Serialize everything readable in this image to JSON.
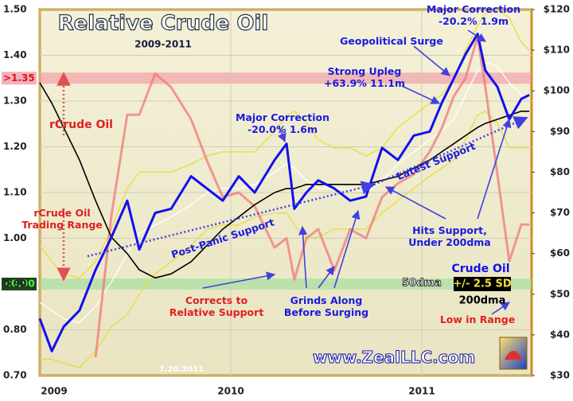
{
  "chart_data": {
    "type": "line",
    "title": "Relative Crude Oil",
    "subtitle": "2009-2011",
    "x": [
      2009.0,
      2009.063,
      2009.125,
      2009.208,
      2009.292,
      2009.375,
      2009.458,
      2009.521,
      2009.604,
      2009.688,
      2009.792,
      2009.875,
      2009.958,
      2010.042,
      2010.125,
      2010.229,
      2010.292,
      2010.333,
      2010.396,
      2010.458,
      2010.542,
      2010.625,
      2010.708,
      2010.792,
      2010.875,
      2010.958,
      2011.042,
      2011.104,
      2011.167,
      2011.229,
      2011.292,
      2011.333,
      2011.396,
      2011.458,
      2011.521,
      2011.563
    ],
    "xlim": [
      2009,
      2011.575
    ],
    "xticks": [
      2009,
      2010,
      2011
    ],
    "ylim": [
      0.7,
      1.5
    ],
    "yticks": [
      {
        "value": 0.7,
        "label": "0.70"
      },
      {
        "value": 0.8,
        "label": "0.80"
      },
      {
        "value": 0.9,
        "label": "0.90"
      },
      {
        "value": 1.0,
        "label": "1.00"
      },
      {
        "value": 1.1,
        "label": "1.10"
      },
      {
        "value": 1.2,
        "label": "1.20"
      },
      {
        "value": 1.3,
        "label": "1.30"
      },
      {
        "value": 1.4,
        "label": "1.40"
      },
      {
        "value": 1.5,
        "label": "1.50"
      }
    ],
    "y2lim": [
      30,
      120
    ],
    "y2ticks": [
      {
        "value": 30,
        "label": "$30"
      },
      {
        "value": 40,
        "label": "$40"
      },
      {
        "value": 50,
        "label": "$50"
      },
      {
        "value": 60,
        "label": "$60"
      },
      {
        "value": 70,
        "label": "$70"
      },
      {
        "value": 80,
        "label": "$80"
      },
      {
        "value": 90,
        "label": "$90"
      },
      {
        "value": 100,
        "label": "$100"
      },
      {
        "value": 110,
        "label": "$110"
      },
      {
        "value": 120,
        "label": "$120"
      }
    ],
    "grid": true,
    "bands": [
      {
        "value": 1.35,
        "label": ">1.35",
        "color": "#f08a9a"
      },
      {
        "value": 0.9,
        "label": "<0.90",
        "color": "#8fe08f"
      }
    ],
    "series": [
      {
        "name": "Crude Oil",
        "color": "#1010f0",
        "axis": "y2",
        "values": [
          44,
          36,
          42,
          46,
          56,
          64,
          73,
          61,
          70,
          71,
          79,
          76,
          73,
          79,
          75,
          83,
          87,
          71,
          75,
          78,
          76,
          73,
          74,
          86,
          83,
          89,
          90,
          97,
          103,
          109,
          114,
          105,
          101,
          93,
          98,
          99
        ]
      },
      {
        "name": "50dma",
        "color": "#ffffff",
        "axis": "y2",
        "values": [
          48,
          46,
          44,
          43,
          47,
          53,
          60,
          65,
          67,
          69,
          72,
          75,
          76,
          76,
          77,
          80,
          82,
          81,
          78,
          76,
          76,
          76,
          75,
          78,
          82,
          85,
          88,
          90,
          93,
          99,
          105,
          107,
          106,
          102,
          99,
          98
        ]
      },
      {
        "name": "+/- 2.5 SD",
        "color": "#e8dc30",
        "axis": "y2",
        "values": [
          62,
          58,
          55,
          54,
          58,
          66,
          76,
          80,
          80,
          80,
          82,
          84,
          85,
          85,
          85,
          90,
          94,
          95,
          92,
          88,
          86,
          86,
          84,
          86,
          91,
          94,
          97,
          99,
          103,
          110,
          116,
          119,
          120,
          118,
          112,
          110
        ],
        "lower": [
          34,
          34,
          33,
          32,
          36,
          42,
          45,
          50,
          55,
          58,
          62,
          66,
          67,
          67,
          69,
          70,
          70,
          67,
          64,
          64,
          66,
          66,
          66,
          70,
          73,
          76,
          79,
          81,
          83,
          88,
          94,
          95,
          92,
          86,
          86,
          86
        ]
      },
      {
        "name": "200dma",
        "color": "#000000",
        "axis": "y2",
        "values": [
          102,
          97,
          91,
          83,
          73,
          64,
          60,
          56,
          54,
          55,
          58,
          62,
          66,
          69,
          72,
          75,
          76,
          76,
          77,
          77,
          77,
          77,
          77,
          78,
          79,
          81,
          83,
          85,
          87,
          89,
          91,
          92,
          93,
          94,
          95,
          95
        ]
      },
      {
        "name": "rCrude Oil",
        "color": "#f07878",
        "values": [
          null,
          null,
          null,
          null,
          0.74,
          1.05,
          1.27,
          1.27,
          1.36,
          1.33,
          1.26,
          1.17,
          1.09,
          1.1,
          1.07,
          0.98,
          1.0,
          0.91,
          1.0,
          1.02,
          0.93,
          1.02,
          1.0,
          1.09,
          1.12,
          1.14,
          1.19,
          1.24,
          1.31,
          1.35,
          1.44,
          1.33,
          1.14,
          0.95,
          1.03,
          1.03
        ]
      }
    ],
    "annotations": [
      {
        "lines": [
          "Major Correction",
          "-20.2%  1.9m"
        ],
        "color": "#1a1ae0"
      },
      {
        "lines": [
          "Geopolitical Surge"
        ],
        "color": "#1a1ae0"
      },
      {
        "lines": [
          "Strong Upleg",
          "+63.9%  11.1m"
        ],
        "color": "#1a1ae0"
      },
      {
        "lines": [
          "Major Correction",
          "-20.0%  1.6m"
        ],
        "color": "#1a1ae0"
      },
      {
        "lines": [
          "Latest Support"
        ],
        "color": "#1a1ae0"
      },
      {
        "lines": [
          "rCrude Oil",
          "Trading Range"
        ],
        "color": "#e02020"
      },
      {
        "lines": [
          "Post-Panic Support"
        ],
        "color": "#1a1ae0"
      },
      {
        "lines": [
          "Hits Support,",
          "Under 200dma"
        ],
        "color": "#1a1ae0"
      },
      {
        "lines": [
          "Corrects to",
          "Relative Support"
        ],
        "color": "#e02020"
      },
      {
        "lines": [
          "Grinds Along",
          "Before Surging"
        ],
        "color": "#1a1ae0"
      },
      {
        "lines": [
          "Low in Range"
        ],
        "color": "#e02020"
      },
      {
        "lines": [
          "www.ZealLLC.com"
        ],
        "color": "#ffffff"
      },
      {
        "lines": [
          "7.20.2011"
        ],
        "color": "#ffffff"
      }
    ]
  }
}
